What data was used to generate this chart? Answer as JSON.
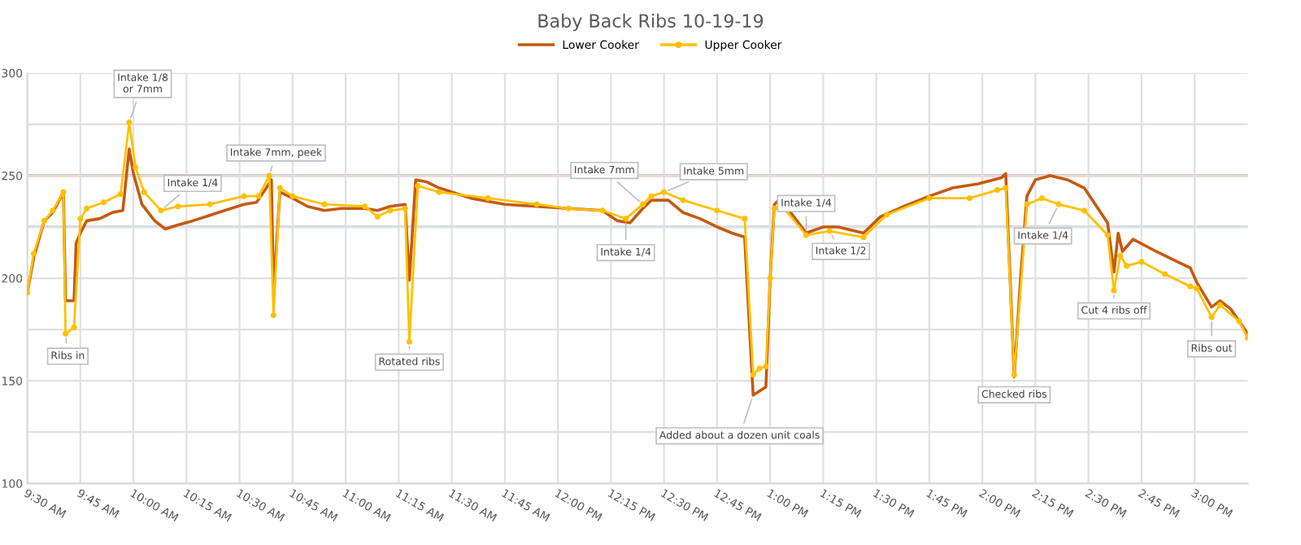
{
  "chart_data": {
    "type": "line",
    "title": "Baby Back Ribs 10-19-19",
    "xlim": [
      9.5,
      15.25
    ],
    "ylim": [
      100,
      300
    ],
    "xticks": [
      {
        "value": 9.5,
        "label": "9:30 AM"
      },
      {
        "value": 9.75,
        "label": "9:45 AM"
      },
      {
        "value": 10,
        "label": "10:00 AM"
      },
      {
        "value": 10.25,
        "label": "10:15 AM"
      },
      {
        "value": 10.5,
        "label": "10:30 AM"
      },
      {
        "value": 10.75,
        "label": "10:45 AM"
      },
      {
        "value": 11,
        "label": "11:00 AM"
      },
      {
        "value": 11.25,
        "label": "11:15 AM"
      },
      {
        "value": 11.5,
        "label": "11:30 AM"
      },
      {
        "value": 11.75,
        "label": "11:45 AM"
      },
      {
        "value": 12,
        "label": "12:00 PM"
      },
      {
        "value": 12.25,
        "label": "12:15 PM"
      },
      {
        "value": 12.5,
        "label": "12:30 PM"
      },
      {
        "value": 12.75,
        "label": "12:45 PM"
      },
      {
        "value": 13,
        "label": "1:00 PM"
      },
      {
        "value": 13.25,
        "label": "1:15 PM"
      },
      {
        "value": 13.5,
        "label": "1:30 PM"
      },
      {
        "value": 13.75,
        "label": "1:45 PM"
      },
      {
        "value": 14,
        "label": "2:00 PM"
      },
      {
        "value": 14.25,
        "label": "2:15 PM"
      },
      {
        "value": 14.5,
        "label": "2:30 PM"
      },
      {
        "value": 14.75,
        "label": "2:45 PM"
      },
      {
        "value": 15,
        "label": "3:00 PM"
      }
    ],
    "yticks": [
      100,
      {
        "value": 125,
        "label": null
      },
      150,
      {
        "value": 175,
        "label": null
      },
      200,
      {
        "value": 225,
        "label": null
      },
      250,
      {
        "value": 275,
        "label": null
      },
      300
    ],
    "grid": true,
    "legend": "top",
    "ref_lines": [
      {
        "axis": "y",
        "value": 250,
        "color": "#d06060"
      },
      {
        "axis": "y",
        "value": 225,
        "color": "#9ab3cf"
      }
    ],
    "series": [
      {
        "name": "Lower Cooker",
        "color": "#c55a11",
        "marker": "none",
        "x": [
          9.5,
          9.53,
          9.58,
          9.62,
          9.67,
          9.68,
          9.72,
          9.73,
          9.75,
          9.78,
          9.84,
          9.9,
          9.95,
          9.98,
          10.0,
          10.04,
          10.1,
          10.15,
          10.21,
          10.28,
          10.4,
          10.52,
          10.58,
          10.62,
          10.65,
          10.66,
          10.69,
          10.75,
          10.82,
          10.9,
          10.98,
          11.09,
          11.15,
          11.21,
          11.28,
          11.3,
          11.33,
          11.38,
          11.44,
          11.59,
          11.75,
          11.9,
          12.05,
          12.21,
          12.28,
          12.34,
          12.4,
          12.44,
          12.52,
          12.59,
          12.67,
          12.75,
          12.82,
          12.88,
          12.92,
          12.95,
          12.98,
          13.0,
          13.02,
          13.04,
          13.09,
          13.17,
          13.25,
          13.32,
          13.44,
          13.52,
          13.63,
          13.75,
          13.86,
          13.98,
          14.09,
          14.11,
          14.15,
          14.18,
          14.21,
          14.25,
          14.32,
          14.4,
          14.48,
          14.59,
          14.62,
          14.64,
          14.66,
          14.71,
          14.82,
          14.9,
          14.98,
          15.01,
          15.08,
          15.12,
          15.17,
          15.25
        ],
        "values": [
          193,
          210,
          228,
          232,
          242,
          189,
          189,
          217,
          222,
          228,
          229,
          232,
          233,
          263,
          251,
          236,
          228,
          224,
          226,
          228,
          232,
          236,
          237,
          243,
          248,
          193,
          242,
          239,
          235,
          233,
          234,
          234,
          233,
          235,
          236,
          199,
          248,
          247,
          244,
          239,
          236,
          235,
          234,
          233,
          228,
          227,
          234,
          238,
          238,
          232,
          229,
          225,
          222,
          220,
          143,
          145,
          147,
          200,
          236,
          238,
          233,
          222,
          225,
          225,
          222,
          230,
          235,
          240,
          244,
          246,
          249,
          251,
          152,
          200,
          240,
          248,
          250,
          248,
          244,
          227,
          203,
          222,
          213,
          219,
          213,
          209,
          205,
          198,
          186,
          189,
          185,
          173
        ]
      },
      {
        "name": "Upper Cooker",
        "color": "#ffc000",
        "marker": "circle",
        "x": [
          9.5,
          9.53,
          9.58,
          9.62,
          9.67,
          9.68,
          9.72,
          9.75,
          9.78,
          9.86,
          9.94,
          9.98,
          10.01,
          10.05,
          10.13,
          10.21,
          10.36,
          10.52,
          10.59,
          10.64,
          10.66,
          10.69,
          10.75,
          10.9,
          11.09,
          11.15,
          11.21,
          11.28,
          11.3,
          11.34,
          11.44,
          11.67,
          11.9,
          12.05,
          12.21,
          12.32,
          12.4,
          12.44,
          12.5,
          12.59,
          12.75,
          12.88,
          12.92,
          12.95,
          12.98,
          13.0,
          13.02,
          13.05,
          13.17,
          13.28,
          13.44,
          13.55,
          13.75,
          13.94,
          14.07,
          14.11,
          14.15,
          14.21,
          14.28,
          14.36,
          14.48,
          14.59,
          14.62,
          14.65,
          14.68,
          14.75,
          14.86,
          14.98,
          15.01,
          15.08,
          15.12,
          15.21,
          15.25
        ],
        "values": [
          193,
          212,
          228,
          233,
          242,
          173,
          176,
          229,
          234,
          237,
          241,
          276,
          254,
          242,
          233,
          235,
          236,
          240,
          240,
          250,
          182,
          244,
          240,
          236,
          235,
          230,
          233,
          234,
          169,
          245,
          242,
          239,
          236,
          234,
          233,
          229,
          236,
          240,
          242,
          238,
          233,
          229,
          153,
          156,
          157,
          200,
          234,
          236,
          221,
          223,
          220,
          231,
          239,
          239,
          243,
          244,
          153,
          236,
          239,
          236,
          233,
          221,
          194,
          211,
          206,
          208,
          202,
          196,
          195,
          181,
          187,
          179,
          171
        ]
      }
    ],
    "annotations": [
      {
        "text": "Intake 1/8\nor 7mm",
        "x": 9.98,
        "y": 276
      },
      {
        "text": "Intake 1/4",
        "x": 10.13,
        "y": 233
      },
      {
        "text": "Ribs in",
        "x": 9.68,
        "y": 173
      },
      {
        "text": "Intake 7mm, peek",
        "x": 10.64,
        "y": 250
      },
      {
        "text": "Rotated ribs",
        "x": 11.3,
        "y": 169
      },
      {
        "text": "Intake 7mm",
        "x": 12.4,
        "y": 236
      },
      {
        "text": "Intake 5mm",
        "x": 12.5,
        "y": 242
      },
      {
        "text": "Intake 1/4",
        "x": 12.32,
        "y": 229
      },
      {
        "text": "Added about a dozen unit coals",
        "x": 12.92,
        "y": 143
      },
      {
        "text": "Intake 1/4",
        "x": 13.17,
        "y": 221
      },
      {
        "text": "Intake 1/2",
        "x": 13.28,
        "y": 223
      },
      {
        "text": "Checked ribs",
        "x": 14.15,
        "y": 152
      },
      {
        "text": "Intake 1/4",
        "x": 14.36,
        "y": 236
      },
      {
        "text": "Cut 4 ribs off",
        "x": 14.62,
        "y": 194
      },
      {
        "text": "Ribs out",
        "x": 15.08,
        "y": 181
      }
    ]
  }
}
